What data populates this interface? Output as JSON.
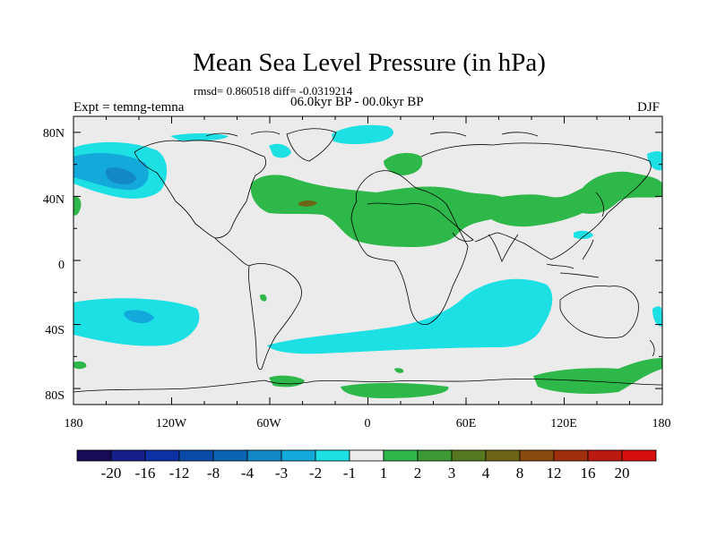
{
  "title": "Mean Sea Level Pressure (in hPa)",
  "stats": "rmsd= 0.860518 diff= -0.0319214",
  "period": "06.0kyr BP - 00.0kyr BP",
  "experiment": "Expt = temng-temna",
  "season": "DJF",
  "y_ticks": [
    "80N",
    "40N",
    "0",
    "40S",
    "80S"
  ],
  "x_ticks": [
    "180",
    "120W",
    "60W",
    "0",
    "60E",
    "120E",
    "180"
  ],
  "colorbar": {
    "labels": [
      "-20",
      "-16",
      "-12",
      "-8",
      "-4",
      "-3",
      "-2",
      "-1",
      "1",
      "2",
      "3",
      "4",
      "8",
      "12",
      "16",
      "20"
    ],
    "colors": [
      "#1a0a5a",
      "#161f8c",
      "#0e32a3",
      "#0a4aa8",
      "#0a66b4",
      "#1388c6",
      "#13aadb",
      "#1ce0e4",
      "#ebebeb",
      "#2fb84a",
      "#3c9a35",
      "#56781f",
      "#6e6418",
      "#8a4a10",
      "#a0300c",
      "#bb1a10",
      "#d80f0f"
    ]
  },
  "map_colors": {
    "background": "#ebebeb",
    "coast": "#000000"
  }
}
